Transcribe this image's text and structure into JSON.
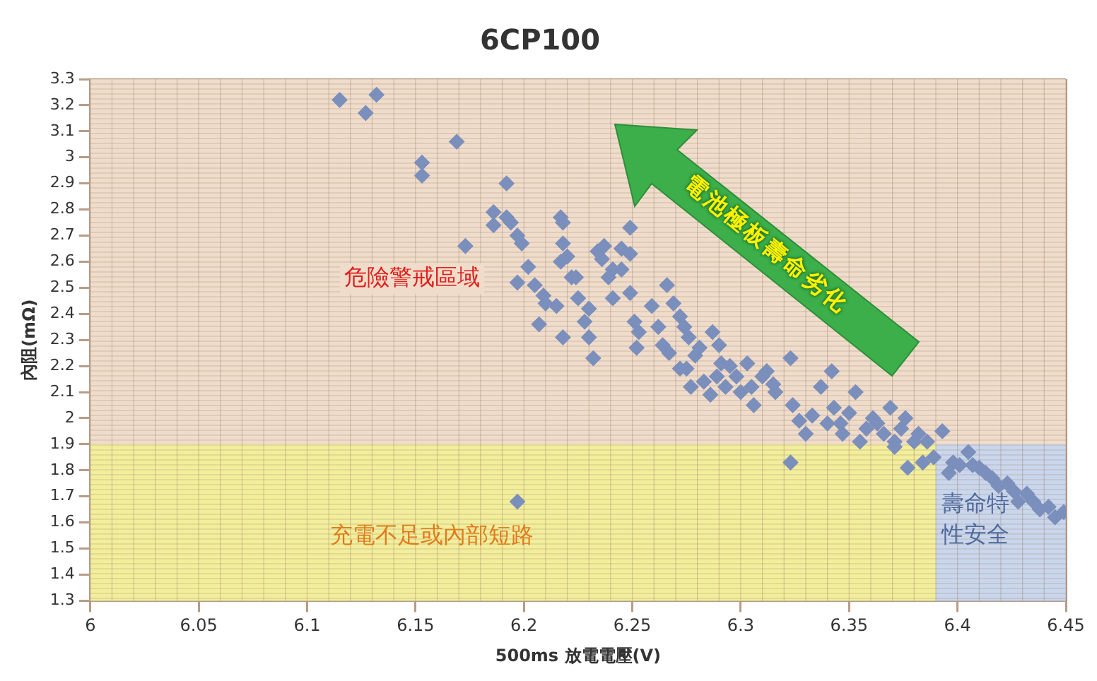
{
  "chart_data": {
    "type": "scatter",
    "title": "6CP100",
    "xlabel": "500ms 放電電壓(V)",
    "ylabel": "內阻(mΩ)",
    "xlim": [
      6,
      6.45
    ],
    "xticks": [
      6,
      6.05,
      6.1,
      6.15,
      6.2,
      6.25,
      6.3,
      6.35,
      6.4,
      6.45
    ],
    "ylim": [
      1.3,
      3.3
    ],
    "yticks": [
      1.3,
      1.4,
      1.5,
      1.6,
      1.7,
      1.8,
      1.9,
      2,
      2.1,
      2.2,
      2.3,
      2.4,
      2.5,
      2.6,
      2.7,
      2.8,
      2.9,
      3,
      3.1,
      3.2,
      3.3
    ],
    "grid": true,
    "marker": "diamond",
    "bands": [
      {
        "axis": "y",
        "from": 1.9,
        "to": 3.3,
        "label": "危險警戒區域",
        "color": "#f0dccb"
      },
      {
        "axis": "y",
        "from": 1.3,
        "to": 1.9,
        "label": "充電不足或內部短路",
        "color": "#f2ee9c"
      },
      {
        "axis": "x",
        "from": 6.39,
        "to": 6.45,
        "label": "壽命特性安全",
        "color": "#c9d6ec"
      }
    ],
    "annotations": [
      "電池極板壽命劣化"
    ],
    "series": [
      {
        "color": "#7b8fbc",
        "x": [
          6.115,
          6.127,
          6.132,
          6.153,
          6.153,
          6.169,
          6.173,
          6.186,
          6.186,
          6.192,
          6.194,
          6.192,
          6.197,
          6.199,
          6.202,
          6.197,
          6.205,
          6.209,
          6.21,
          6.215,
          6.207,
          6.218,
          6.217,
          6.218,
          6.217,
          6.22,
          6.218,
          6.222,
          6.224,
          6.225,
          6.228,
          6.23,
          6.232,
          6.23,
          6.234,
          6.236,
          6.237,
          6.239,
          6.241,
          6.241,
          6.245,
          6.245,
          6.249,
          6.249,
          6.249,
          6.251,
          6.253,
          6.252,
          6.259,
          6.262,
          6.264,
          6.267,
          6.266,
          6.269,
          6.272,
          6.274,
          6.276,
          6.272,
          6.275,
          6.277,
          6.279,
          6.281,
          6.283,
          6.286,
          6.289,
          6.287,
          6.29,
          6.291,
          6.293,
          6.295,
          6.298,
          6.3,
          6.303,
          6.305,
          6.306,
          6.31,
          6.312,
          6.315,
          6.316,
          6.323,
          6.324,
          6.327,
          6.33,
          6.333,
          6.337,
          6.342,
          6.34,
          6.343,
          6.346,
          6.347,
          6.35,
          6.353,
          6.355,
          6.358,
          6.361,
          6.363,
          6.366,
          6.369,
          6.371,
          6.374,
          6.376,
          6.38,
          6.382,
          6.386,
          6.384,
          6.389,
          6.393,
          6.396,
          6.398,
          6.401,
          6.405,
          6.407,
          6.41,
          6.413,
          6.416,
          6.419,
          6.423,
          6.426,
          6.428,
          6.432,
          6.435,
          6.438,
          6.442,
          6.445,
          6.449,
          6.323,
          6.371,
          6.377,
          6.197
        ],
        "values": [
          3.22,
          3.17,
          3.24,
          2.98,
          2.93,
          3.06,
          2.66,
          2.79,
          2.74,
          2.77,
          2.75,
          2.9,
          2.7,
          2.67,
          2.58,
          2.52,
          2.51,
          2.47,
          2.44,
          2.43,
          2.36,
          2.31,
          2.77,
          2.75,
          2.6,
          2.62,
          2.67,
          2.54,
          2.54,
          2.46,
          2.37,
          2.31,
          2.23,
          2.42,
          2.64,
          2.61,
          2.66,
          2.54,
          2.46,
          2.57,
          2.57,
          2.65,
          2.73,
          2.63,
          2.48,
          2.37,
          2.33,
          2.27,
          2.43,
          2.35,
          2.28,
          2.25,
          2.51,
          2.44,
          2.39,
          2.35,
          2.31,
          2.19,
          2.19,
          2.12,
          2.24,
          2.27,
          2.14,
          2.09,
          2.16,
          2.33,
          2.28,
          2.21,
          2.12,
          2.2,
          2.16,
          2.1,
          2.21,
          2.12,
          2.05,
          2.16,
          2.18,
          2.13,
          2.1,
          2.23,
          2.05,
          1.99,
          1.94,
          2.01,
          2.12,
          2.18,
          1.98,
          2.04,
          1.98,
          1.94,
          2.02,
          2.1,
          1.91,
          1.96,
          2,
          1.98,
          1.94,
          2.04,
          1.91,
          1.96,
          2,
          1.91,
          1.94,
          1.91,
          1.83,
          1.85,
          1.95,
          1.79,
          1.83,
          1.82,
          1.87,
          1.82,
          1.81,
          1.79,
          1.77,
          1.74,
          1.75,
          1.72,
          1.68,
          1.71,
          1.68,
          1.65,
          1.66,
          1.62,
          1.64,
          1.83,
          1.89,
          1.81,
          1.68
        ]
      }
    ]
  }
}
